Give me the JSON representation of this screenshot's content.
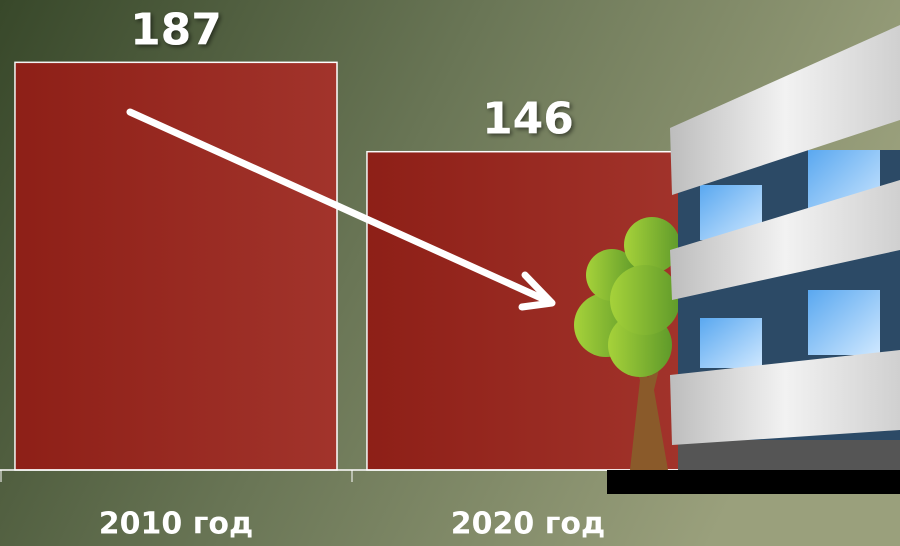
{
  "chart_data": {
    "type": "bar",
    "categories": [
      "2010 год",
      "2020 год"
    ],
    "values": [
      187,
      146
    ],
    "color": "#9a2219"
  }
}
